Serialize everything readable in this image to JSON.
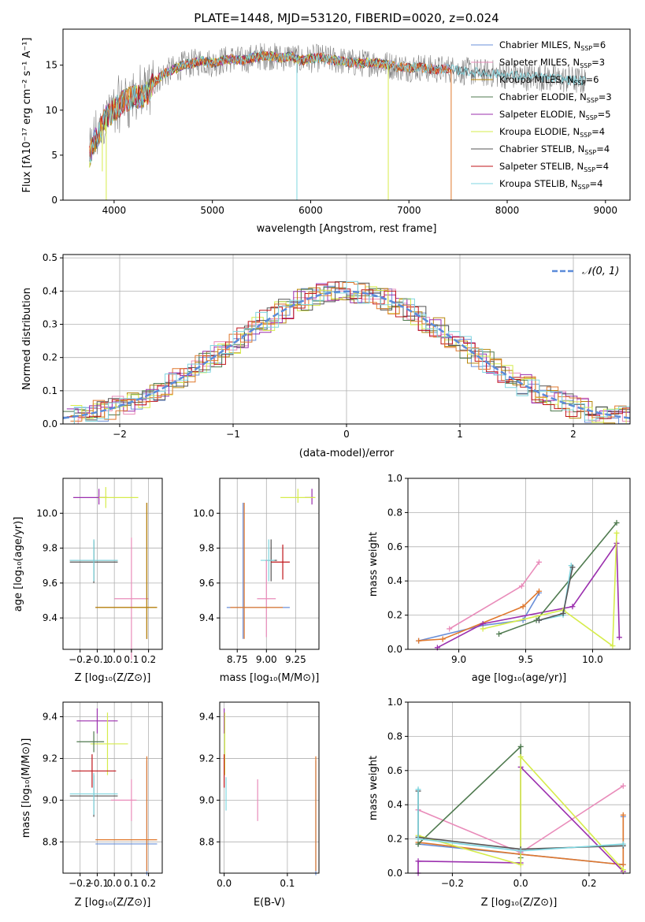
{
  "figure_title": "PLATE=1448, MJD=53120, FIBERID=0020, z=0.024",
  "colors": {
    "chabrier_miles": "#6a8fd8",
    "salpeter_miles": "#e98cba",
    "kroupa_miles": "#b8860b",
    "chabrier_elodie": "#4f7a4f",
    "salpeter_elodie": "#9b2fae",
    "kroupa_elodie": "#d6ec4b",
    "chabrier_stelib": "#555555",
    "salpeter_stelib": "#c0141a",
    "kroupa_stelib": "#7fd6e0",
    "data": "#808080",
    "orange": "#e0782d",
    "gauss": "#5b8bd9"
  },
  "chart_data": [
    {
      "type": "line",
      "title": "PLATE=1448, MJD=53120, FIBERID=0020, z=0.024",
      "xlabel": "wavelength [Angstrom, rest frame]",
      "ylabel": "Flux [fλ10⁻¹⁷ erg cm⁻² s⁻¹ A⁻¹]",
      "xlim": [
        3480,
        9250
      ],
      "ylim": [
        0,
        19
      ],
      "xticks": [
        "4000",
        "5000",
        "6000",
        "7000",
        "8000",
        "9000"
      ],
      "yticks": [
        "0",
        "5",
        "10",
        "15"
      ],
      "legend": [
        {
          "key": "chabrier_miles",
          "text": "Chabrier MILES, N",
          "sub": "SSP",
          "suffix": "=6"
        },
        {
          "key": "salpeter_miles",
          "text": "Salpeter MILES, N",
          "sub": "SSP",
          "suffix": "=3"
        },
        {
          "key": "kroupa_miles",
          "text": "Kroupa MILES, N",
          "sub": "SSP",
          "suffix": "=6"
        },
        {
          "key": "chabrier_elodie",
          "text": "Chabrier ELODIE, N",
          "sub": "SSP",
          "suffix": "=3"
        },
        {
          "key": "salpeter_elodie",
          "text": "Salpeter ELODIE, N",
          "sub": "SSP",
          "suffix": "=5"
        },
        {
          "key": "kroupa_elodie",
          "text": "Kroupa ELODIE, N",
          "sub": "SSP",
          "suffix": "=4"
        },
        {
          "key": "chabrier_stelib",
          "text": "Chabrier STELIB, N",
          "sub": "SSP",
          "suffix": "=4"
        },
        {
          "key": "salpeter_stelib",
          "text": "Salpeter STELIB, N",
          "sub": "SSP",
          "suffix": "=4"
        },
        {
          "key": "kroupa_stelib",
          "text": "Kroupa STELIB, N",
          "sub": "SSP",
          "suffix": "=4"
        }
      ],
      "spectrum_points": [
        [
          3750,
          5
        ],
        [
          3800,
          6.5
        ],
        [
          3850,
          7.5
        ],
        [
          3900,
          9
        ],
        [
          3950,
          9.5
        ],
        [
          4000,
          10
        ],
        [
          4050,
          10.5
        ],
        [
          4100,
          11
        ],
        [
          4150,
          11.2
        ],
        [
          4200,
          11.5
        ],
        [
          4300,
          11.5
        ],
        [
          4350,
          12
        ],
        [
          4400,
          13
        ],
        [
          4500,
          14
        ],
        [
          4600,
          14.5
        ],
        [
          4700,
          15
        ],
        [
          4800,
          15.2
        ],
        [
          4900,
          15.5
        ],
        [
          5000,
          15.2
        ],
        [
          5100,
          15.5
        ],
        [
          5200,
          15.7
        ],
        [
          5300,
          15.5
        ],
        [
          5400,
          15.8
        ],
        [
          5500,
          16
        ],
        [
          5600,
          16
        ],
        [
          5700,
          15.8
        ],
        [
          5800,
          16
        ],
        [
          5900,
          15.5
        ],
        [
          6000,
          15.7
        ],
        [
          6100,
          15.8
        ],
        [
          6200,
          15.6
        ],
        [
          6300,
          15.5
        ],
        [
          6400,
          15.3
        ],
        [
          6500,
          15.2
        ],
        [
          6600,
          15.3
        ],
        [
          6700,
          15.2
        ],
        [
          6800,
          15
        ],
        [
          6900,
          14.8
        ],
        [
          7000,
          14.7
        ],
        [
          7100,
          14.8
        ],
        [
          7200,
          14.6
        ],
        [
          7300,
          14.5
        ],
        [
          7400,
          14.6
        ],
        [
          7500,
          14.4
        ],
        [
          7600,
          14.3
        ],
        [
          7700,
          14.2
        ],
        [
          7800,
          14.1
        ],
        [
          7900,
          14
        ],
        [
          8000,
          13.9
        ],
        [
          8100,
          13.8
        ],
        [
          8200,
          13.7
        ],
        [
          8300,
          13.7
        ],
        [
          8400,
          13.6
        ],
        [
          8500,
          13.5
        ],
        [
          8600,
          13.4
        ],
        [
          8700,
          13.3
        ],
        [
          8800,
          13.2
        ]
      ]
    },
    {
      "type": "step-histogram",
      "xlabel": "(data-model)/error",
      "ylabel": "Normed distribution",
      "xlim": [
        -2.5,
        2.5
      ],
      "ylim": [
        0,
        0.51
      ],
      "xticks": [
        "−2",
        "−1",
        "0",
        "1",
        "2"
      ],
      "yticks": [
        "0.0",
        "0.1",
        "0.2",
        "0.3",
        "0.4",
        "0.5"
      ],
      "gaussian_label": "𝒩(0, 1)",
      "bin_width": 0.1
    },
    {
      "type": "errorbar",
      "xlabel": "Z [log₁₀(Z/Z⊙)]",
      "ylabel": "age  [log₁₀(age/yr)]",
      "xlim": [
        -0.3,
        0.28
      ],
      "ylim": [
        9.22,
        10.2
      ],
      "xticks": [
        "−0.2",
        "−0.1",
        "0.0",
        "0.1",
        "0.2"
      ],
      "yticks": [
        "9.4",
        "9.6",
        "9.8",
        "10.0"
      ]
    },
    {
      "type": "errorbar",
      "xlabel": "mass [log₁₀(M/M⊙)]",
      "xlim": [
        8.6,
        9.45
      ],
      "ylim": [
        9.22,
        10.2
      ],
      "xticks": [
        "8.75",
        "9.00",
        "9.25"
      ],
      "yticks": [
        "9.4",
        "9.6",
        "9.8",
        "10.0"
      ]
    },
    {
      "type": "line",
      "xlabel": "age  [log₁₀(age/yr)]",
      "ylabel": "mass weight",
      "xlim": [
        8.62,
        10.28
      ],
      "ylim": [
        0,
        1
      ],
      "xticks": [
        "9.0",
        "9.5",
        "10.0"
      ],
      "yticks": [
        "0.0",
        "0.2",
        "0.4",
        "0.6",
        "0.8",
        "1.0"
      ]
    },
    {
      "type": "errorbar",
      "xlabel": "Z [log₁₀(Z/Z⊙)]",
      "ylabel": "mass [log₁₀(M/M⊙)]",
      "xlim": [
        -0.3,
        0.28
      ],
      "ylim": [
        8.65,
        9.47
      ],
      "xticks": [
        "−0.2",
        "−0.1",
        "0.0",
        "0.1",
        "0.2"
      ],
      "yticks": [
        "8.8",
        "9.0",
        "9.2",
        "9.4"
      ]
    },
    {
      "type": "errorbar",
      "xlabel": "E(B-V)",
      "xlim": [
        -0.007,
        0.15
      ],
      "ylim": [
        8.65,
        9.47
      ],
      "xticks": [
        "0.0",
        "0.1"
      ],
      "yticks": [
        "8.8",
        "9.0",
        "9.2",
        "9.4"
      ]
    },
    {
      "type": "line",
      "xlabel": "Z [log₁₀(Z/Z⊙)]",
      "ylabel": "mass weight",
      "xlim": [
        -0.33,
        0.32
      ],
      "ylim": [
        0,
        1
      ],
      "xticks": [
        "−0.2",
        "0.0",
        "0.2"
      ],
      "yticks": [
        "0.0",
        "0.2",
        "0.4",
        "0.6",
        "0.8",
        "1.0"
      ]
    }
  ]
}
